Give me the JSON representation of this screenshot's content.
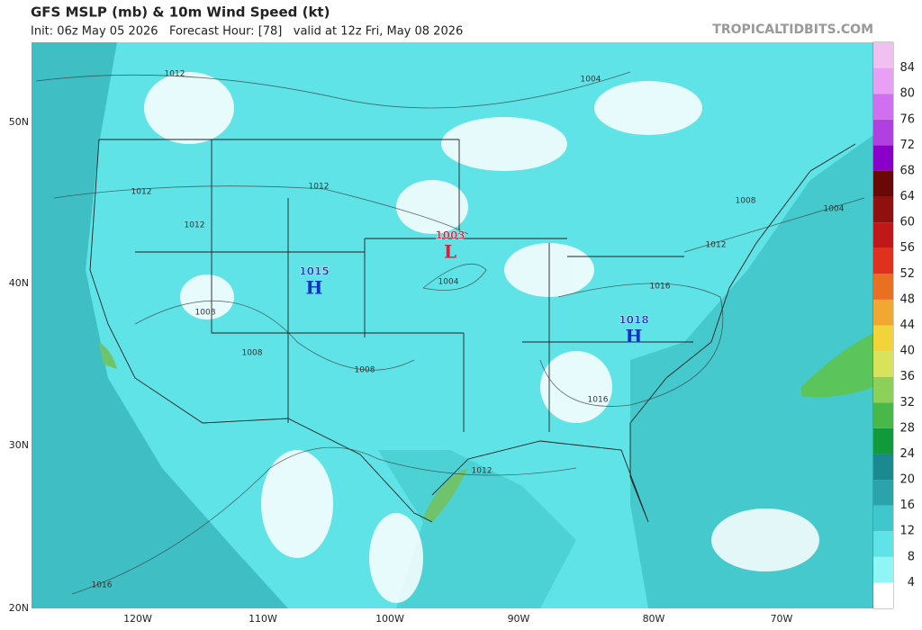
{
  "header": {
    "title": "GFS MSLP (mb) & 10m Wind Speed (kt)",
    "subtitle": "Init: 06z May 05 2026   Forecast Hour: [78]   valid at 12z Fri, May 08 2026",
    "site": "TROPICALTIDBITS.COM"
  },
  "map": {
    "lat_labels": [
      "50N",
      "40N",
      "30N",
      "20N"
    ],
    "lon_labels": [
      "120W",
      "110W",
      "100W",
      "90W",
      "80W",
      "70W"
    ],
    "centers": [
      {
        "letter": "H",
        "pressure": "1015"
      },
      {
        "letter": "L",
        "pressure": "1003"
      },
      {
        "letter": "H",
        "pressure": "1018"
      }
    ],
    "isobar_labels": [
      "1012",
      "1004",
      "1012",
      "1012",
      "1012",
      "1008",
      "1008",
      "1008",
      "1004",
      "1016",
      "1012",
      "1008",
      "1004",
      "1016",
      "1012",
      "1016"
    ]
  },
  "colorbar": {
    "labels": [
      "4",
      "8",
      "12",
      "16",
      "20",
      "24",
      "28",
      "32",
      "36",
      "40",
      "44",
      "48",
      "52",
      "56",
      "60",
      "64",
      "68",
      "72",
      "76",
      "80",
      "84"
    ]
  }
}
